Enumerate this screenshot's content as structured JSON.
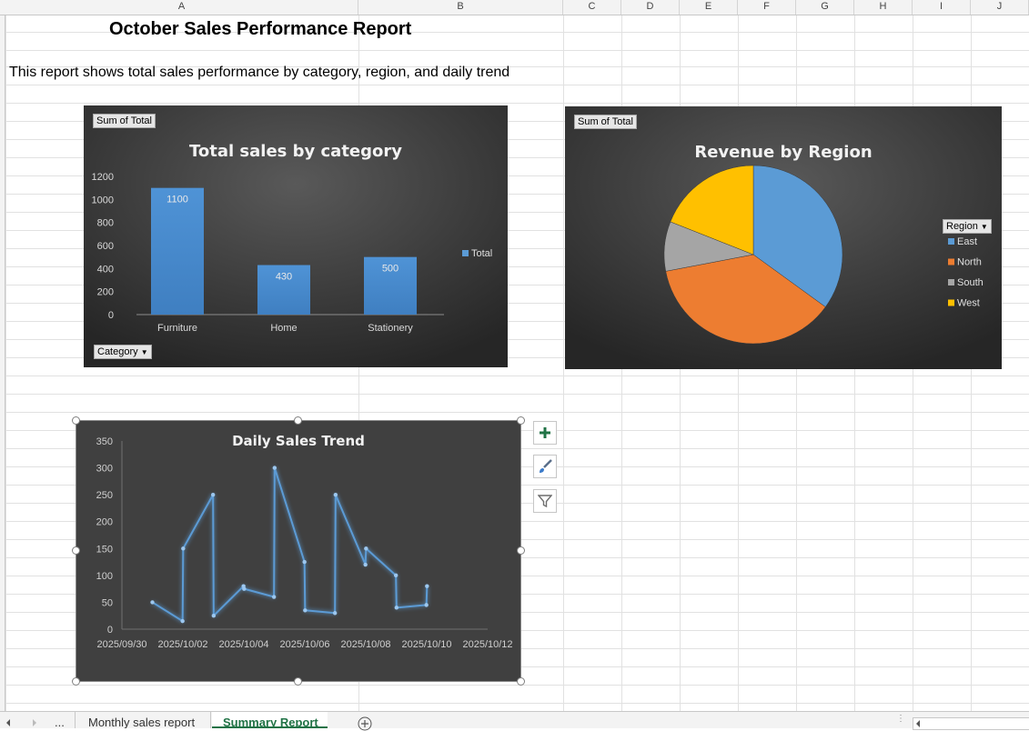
{
  "columns": [
    "A",
    "B",
    "C",
    "D",
    "E",
    "F",
    "G",
    "H",
    "I",
    "J"
  ],
  "sheet": {
    "title": "October Sales Performance Report",
    "subtitle": "This report shows total sales performance by category, region, and daily trend"
  },
  "colors": {
    "chart_bg": "#404040",
    "bar": "#5b9bd5",
    "line": "#5b9bd5",
    "east": "#5b9bd5",
    "north": "#ed7d31",
    "south": "#a5a5a5",
    "west": "#ffc000",
    "tab_active": "#217346"
  },
  "bar_chart": {
    "field_button": "Sum of Total",
    "axis_button": "Category",
    "legend_label": "Total"
  },
  "pie_chart": {
    "field_button": "Sum of Total",
    "legend_button": "Region"
  },
  "side_buttons": {
    "add": "plus-icon",
    "style": "brush-icon",
    "filter": "funnel-icon"
  },
  "chart_data": [
    {
      "type": "bar",
      "title": "Total sales by category",
      "categories": [
        "Furniture",
        "Home",
        "Stationery"
      ],
      "series": [
        {
          "name": "Total",
          "values": [
            1100,
            430,
            500
          ]
        }
      ],
      "data_labels": [
        "1100",
        "430",
        "500"
      ],
      "yticks": [
        "0",
        "200",
        "400",
        "600",
        "800",
        "1000",
        "1200"
      ],
      "ylim": [
        0,
        1200
      ],
      "grid": false,
      "legend": "right"
    },
    {
      "type": "pie",
      "title": "Revenue by Region",
      "labels": [
        "East",
        "North",
        "South",
        "West"
      ],
      "values": [
        35,
        37,
        9,
        19
      ],
      "legend": "right"
    },
    {
      "type": "line",
      "title": "Daily Sales Trend",
      "x": [
        "2025/10/01",
        "2025/10/02",
        "2025/10/02",
        "2025/10/03",
        "2025/10/03",
        "2025/10/04",
        "2025/10/04",
        "2025/10/05",
        "2025/10/05",
        "2025/10/06",
        "2025/10/06",
        "2025/10/07",
        "2025/10/07",
        "2025/10/08",
        "2025/10/08",
        "2025/10/09",
        "2025/10/09",
        "2025/10/10",
        "2025/10/10"
      ],
      "y": [
        50,
        15,
        150,
        250,
        25,
        80,
        75,
        60,
        300,
        125,
        35,
        30,
        250,
        120,
        150,
        100,
        40,
        45,
        80
      ],
      "xticks": [
        "2025/09/30",
        "2025/10/02",
        "2025/10/04",
        "2025/10/06",
        "2025/10/08",
        "2025/10/10",
        "2025/10/12"
      ],
      "yticks": [
        "0",
        "50",
        "100",
        "150",
        "200",
        "250",
        "300",
        "350"
      ],
      "ylim": [
        0,
        350
      ],
      "grid": false
    }
  ],
  "tabs": {
    "nav_more": "...",
    "items": [
      {
        "label": "Monthly sales report",
        "active": false
      },
      {
        "label": "Summary Report",
        "active": true
      }
    ],
    "add_icon": "plus-circle-icon"
  }
}
